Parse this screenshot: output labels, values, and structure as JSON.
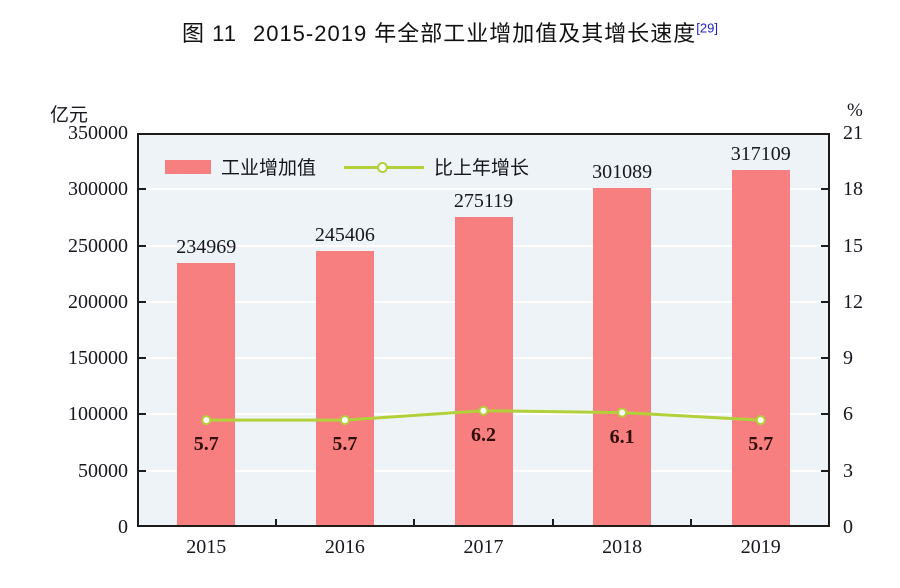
{
  "title": {
    "figure_label": "图 11",
    "text": "2015-2019 年全部工业增加值及其增长速度",
    "superscript": "[29]"
  },
  "chart_data": {
    "type": "bar",
    "categories": [
      "2015",
      "2016",
      "2017",
      "2018",
      "2019"
    ],
    "series": [
      {
        "name": "工业增加值",
        "type": "bar",
        "axis": "left",
        "values": [
          234969,
          245406,
          275119,
          301089,
          317109
        ],
        "labels": [
          "234969",
          "245406",
          "275119",
          "301089",
          "317109"
        ]
      },
      {
        "name": "比上年增长",
        "type": "line",
        "axis": "right",
        "values": [
          5.7,
          5.7,
          6.2,
          6.1,
          5.7
        ],
        "labels": [
          "5.7",
          "5.7",
          "6.2",
          "6.1",
          "5.7"
        ]
      }
    ],
    "left_axis": {
      "unit": "亿元",
      "min": 0,
      "max": 350000,
      "step": 50000,
      "tick_labels": [
        "0",
        "50000",
        "100000",
        "150000",
        "200000",
        "250000",
        "300000",
        "350000"
      ]
    },
    "right_axis": {
      "unit": "%",
      "min": 0,
      "max": 21,
      "step": 3,
      "tick_labels": [
        "0",
        "3",
        "6",
        "9",
        "12",
        "15",
        "18",
        "21"
      ]
    },
    "grid": true,
    "legend_position": "top-left-inside"
  },
  "colors": {
    "bar_fill": "#f87f7f",
    "line_stroke": "#b2d138",
    "marker_fill": "#ffffff",
    "plot_background": "#edf3f7",
    "grid_line": "#ffffff",
    "axis_line": "#1c1c1c",
    "text": "#17171f",
    "growth_label_text": "#30100e",
    "footnote_ref": "#2121cc"
  }
}
